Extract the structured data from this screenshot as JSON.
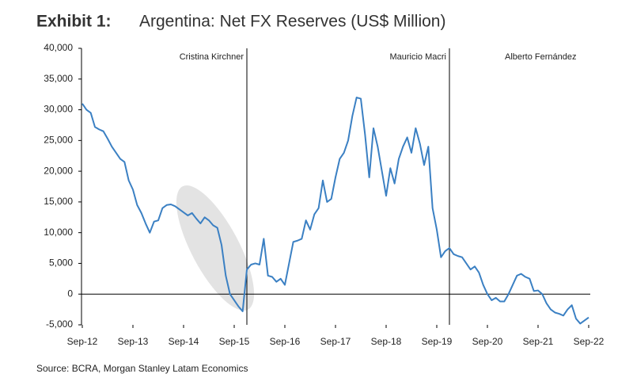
{
  "chart_data": {
    "type": "line",
    "title_prefix": "Exhibit 1:",
    "title": "Argentina: Net FX Reserves (US$ Million)",
    "source": "Source: BCRA, Morgan Stanley Latam Economics",
    "x": [
      "2012-09",
      "2012-10",
      "2012-11",
      "2012-12",
      "2013-01",
      "2013-02",
      "2013-03",
      "2013-04",
      "2013-05",
      "2013-06",
      "2013-07",
      "2013-08",
      "2013-09",
      "2013-10",
      "2013-11",
      "2013-12",
      "2014-01",
      "2014-02",
      "2014-03",
      "2014-04",
      "2014-05",
      "2014-06",
      "2014-07",
      "2014-08",
      "2014-09",
      "2014-10",
      "2014-11",
      "2014-12",
      "2015-01",
      "2015-02",
      "2015-03",
      "2015-04",
      "2015-05",
      "2015-06",
      "2015-07",
      "2015-08",
      "2015-09",
      "2015-10",
      "2015-11",
      "2015-12",
      "2016-01",
      "2016-02",
      "2016-03",
      "2016-04",
      "2016-05",
      "2016-06",
      "2016-07",
      "2016-08",
      "2016-09",
      "2016-10",
      "2016-11",
      "2016-12",
      "2017-01",
      "2017-02",
      "2017-03",
      "2017-04",
      "2017-05",
      "2017-06",
      "2017-07",
      "2017-08",
      "2017-09",
      "2017-10",
      "2017-11",
      "2017-12",
      "2018-01",
      "2018-02",
      "2018-03",
      "2018-04",
      "2018-05",
      "2018-06",
      "2018-07",
      "2018-08",
      "2018-09",
      "2018-10",
      "2018-11",
      "2018-12",
      "2019-01",
      "2019-02",
      "2019-03",
      "2019-04",
      "2019-05",
      "2019-06",
      "2019-07",
      "2019-08",
      "2019-09",
      "2019-10",
      "2019-11",
      "2019-12",
      "2020-01",
      "2020-02",
      "2020-03",
      "2020-04",
      "2020-05",
      "2020-06",
      "2020-07",
      "2020-08",
      "2020-09",
      "2020-10",
      "2020-11",
      "2020-12",
      "2021-01",
      "2021-02",
      "2021-03",
      "2021-04",
      "2021-05",
      "2021-06",
      "2021-07",
      "2021-08",
      "2021-09",
      "2021-10",
      "2021-11",
      "2021-12",
      "2022-01",
      "2022-02",
      "2022-03",
      "2022-04",
      "2022-05",
      "2022-06",
      "2022-07",
      "2022-08",
      "2022-09"
    ],
    "series": [
      {
        "name": "Net FX Reserves",
        "color": "#3b80c3",
        "values": [
          31000,
          30000,
          29500,
          27200,
          26800,
          26500,
          25300,
          24000,
          23000,
          22000,
          21500,
          18500,
          17000,
          14500,
          13200,
          11500,
          10000,
          11800,
          12000,
          14000,
          14500,
          14600,
          14300,
          13800,
          13300,
          12800,
          13200,
          12300,
          11500,
          12500,
          12000,
          11200,
          10800,
          8000,
          3000,
          0,
          -1000,
          -2000,
          -2800,
          4000,
          4800,
          5000,
          4800,
          9000,
          3000,
          2800,
          2000,
          2500,
          1500,
          5000,
          8500,
          8700,
          9000,
          12000,
          10500,
          13000,
          14000,
          18500,
          15000,
          15500,
          19000,
          22000,
          23000,
          25000,
          29000,
          32000,
          31800,
          26000,
          19000,
          27000,
          24000,
          20000,
          16000,
          20500,
          18000,
          22000,
          24000,
          25500,
          23000,
          27000,
          24500,
          21000,
          24000,
          14000,
          10500,
          6000,
          7000,
          7500,
          6500,
          6200,
          6000,
          5000,
          4000,
          4500,
          3500,
          1500,
          0,
          -1000,
          -600,
          -1200,
          -1200,
          0,
          1500,
          3000,
          3300,
          2800,
          2500,
          500,
          600,
          0,
          -1500,
          -2500,
          -3000,
          -3200,
          -3500,
          -2500,
          -1800,
          -4000,
          -4800,
          -4300,
          -3800
        ]
      }
    ],
    "xlim": [
      "2012-09",
      "2022-09"
    ],
    "xticks": [
      {
        "value": "2012-09",
        "label": "Sep-12"
      },
      {
        "value": "2013-09",
        "label": "Sep-13"
      },
      {
        "value": "2014-09",
        "label": "Sep-14"
      },
      {
        "value": "2015-09",
        "label": "Sep-15"
      },
      {
        "value": "2016-09",
        "label": "Sep-16"
      },
      {
        "value": "2017-09",
        "label": "Sep-17"
      },
      {
        "value": "2018-09",
        "label": "Sep-18"
      },
      {
        "value": "2019-09",
        "label": "Sep-19"
      },
      {
        "value": "2020-09",
        "label": "Sep-20"
      },
      {
        "value": "2021-09",
        "label": "Sep-21"
      },
      {
        "value": "2022-09",
        "label": "Sep-22"
      }
    ],
    "ylim": [
      -5000,
      40000
    ],
    "yticks": [
      {
        "value": -5000,
        "label": "-5,000"
      },
      0,
      {
        "value": 5000,
        "label": "5,000"
      },
      {
        "value": 10000,
        "label": "10,000"
      },
      {
        "value": 15000,
        "label": "15,000"
      },
      {
        "value": 20000,
        "label": "20,000"
      },
      {
        "value": 25000,
        "label": "25,000"
      },
      {
        "value": 30000,
        "label": "30,000"
      },
      {
        "value": 35000,
        "label": "35,000"
      },
      {
        "value": 40000,
        "label": "40,000"
      }
    ],
    "periods": [
      {
        "name": "Cristina Kirchner",
        "end": "2015-12"
      },
      {
        "name": "Mauricio Macri",
        "start": "2015-12",
        "end": "2019-12"
      },
      {
        "name": "Alberto Fernández",
        "start": "2019-12"
      }
    ]
  }
}
